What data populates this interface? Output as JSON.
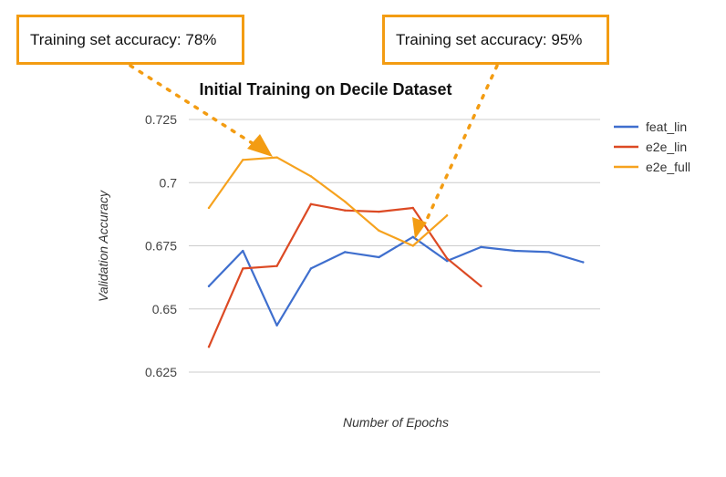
{
  "callouts": [
    {
      "text": "Training set accuracy: 78%"
    },
    {
      "text": "Training set accuracy: 95%"
    }
  ],
  "colors": {
    "feat_lin": "#3f6fce",
    "e2e_lin": "#dc4a24",
    "e2e_full": "#f6a21e",
    "callout": "#f39c12",
    "grid": "#cccccc"
  },
  "chart_data": {
    "type": "line",
    "title": "Initial Training on Decile Dataset",
    "xlabel": "Number of Epochs",
    "ylabel": "Validation Accuracy",
    "ylim": [
      0.625,
      0.725
    ],
    "yticks": [
      "0.725",
      "0.7",
      "0.675",
      "0.65",
      "0.625"
    ],
    "grid": true,
    "legend_position": "right",
    "x": [
      1,
      2,
      3,
      4,
      5,
      6,
      7,
      8,
      9,
      10,
      11,
      12
    ],
    "series": [
      {
        "name": "feat_lin",
        "values": [
          0.659,
          0.673,
          0.6435,
          0.666,
          0.6725,
          0.6705,
          0.6785,
          0.669,
          0.6745,
          0.673,
          0.6725,
          0.6685
        ]
      },
      {
        "name": "e2e_lin",
        "values": [
          0.635,
          0.666,
          0.667,
          0.6915,
          0.689,
          0.6885,
          0.69,
          0.67,
          0.659,
          null,
          null,
          null
        ]
      },
      {
        "name": "e2e_full",
        "values": [
          0.69,
          0.709,
          0.71,
          0.7025,
          0.6925,
          0.681,
          0.675,
          0.687,
          null,
          null,
          null,
          null
        ]
      }
    ]
  }
}
